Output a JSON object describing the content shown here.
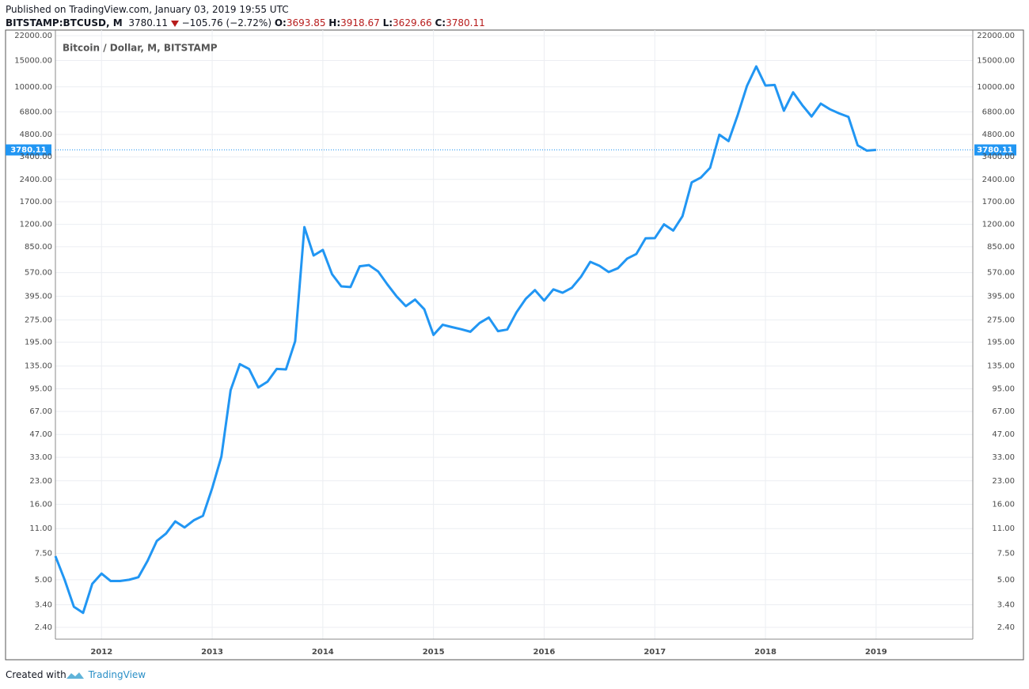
{
  "header": {
    "published": "Published on TradingView.com, January 03, 2019 19:55 UTC",
    "symbol": "BITSTAMP:BTCUSD, M",
    "last": "3780.11",
    "change": "−105.76 (−2.72%)",
    "open_label": "O:",
    "open": "3693.85",
    "high_label": "H:",
    "high": "3918.67",
    "low_label": "L:",
    "low": "3629.66",
    "close_label": "C:",
    "close": "3780.11"
  },
  "chart_data": {
    "type": "line",
    "title": "Bitcoin / Dollar, M, BITSTAMP",
    "color": "#2196f3",
    "log_scale": true,
    "grid": true,
    "categories": [
      null,
      null,
      null,
      null,
      null,
      "2012",
      null,
      null,
      null,
      null,
      null,
      null,
      null,
      null,
      null,
      null,
      null,
      "2013",
      null,
      null,
      null,
      null,
      null,
      null,
      null,
      null,
      null,
      null,
      null,
      "2014",
      null,
      null,
      null,
      null,
      null,
      null,
      null,
      null,
      null,
      null,
      null,
      "2015",
      null,
      null,
      null,
      null,
      null,
      null,
      null,
      null,
      null,
      null,
      null,
      "2016",
      null,
      null,
      null,
      null,
      null,
      null,
      null,
      null,
      null,
      null,
      null,
      "2017",
      null,
      null,
      null,
      null,
      null,
      null,
      null,
      null,
      null,
      null,
      null,
      "2018",
      null,
      null,
      null,
      null,
      null,
      null,
      null,
      null,
      null,
      null,
      null,
      "2019"
    ],
    "values": [
      7.2,
      5.0,
      3.3,
      3.0,
      4.7,
      5.5,
      4.9,
      4.9,
      5.0,
      5.2,
      6.7,
      9.1,
      10.2,
      12.3,
      11.2,
      12.5,
      13.4,
      20.5,
      33.4,
      93,
      139,
      129,
      97,
      106,
      129,
      128,
      198,
      1150,
      742,
      809,
      556,
      461,
      456,
      628,
      640,
      580,
      475,
      395,
      340,
      376,
      324,
      218,
      255,
      246,
      238,
      229,
      262,
      285,
      231,
      237,
      309,
      380,
      435,
      370,
      440,
      418,
      451,
      535,
      673,
      633,
      575,
      610,
      707,
      760,
      967,
      970,
      1200,
      1090,
      1360,
      2290,
      2470,
      2870,
      4780,
      4330,
      6500,
      10160,
      13700,
      10200,
      10300,
      6920,
      9190,
      7530,
      6330,
      7720,
      7070,
      6640,
      6290,
      4060,
      3740,
      3780.11
    ],
    "ylim": [
      2.0,
      24000
    ],
    "yticks": [
      {
        "value": 22000,
        "label": "22000.00"
      },
      {
        "value": 15000,
        "label": "15000.00"
      },
      {
        "value": 10000,
        "label": "10000.00"
      },
      {
        "value": 6800,
        "label": "6800.00"
      },
      {
        "value": 4800,
        "label": "4800.00"
      },
      {
        "value": 3400,
        "label": "3400.00"
      },
      {
        "value": 2400,
        "label": "2400.00"
      },
      {
        "value": 1700,
        "label": "1700.00"
      },
      {
        "value": 1200,
        "label": "1200.00"
      },
      {
        "value": 850,
        "label": "850.00"
      },
      {
        "value": 570,
        "label": "570.00"
      },
      {
        "value": 395,
        "label": "395.00"
      },
      {
        "value": 275,
        "label": "275.00"
      },
      {
        "value": 195,
        "label": "195.00"
      },
      {
        "value": 135,
        "label": "135.00"
      },
      {
        "value": 95,
        "label": "95.00"
      },
      {
        "value": 67,
        "label": "67.00"
      },
      {
        "value": 47,
        "label": "47.00"
      },
      {
        "value": 33,
        "label": "33.00"
      },
      {
        "value": 23,
        "label": "23.00"
      },
      {
        "value": 16,
        "label": "16.00"
      },
      {
        "value": 11,
        "label": "11.00"
      },
      {
        "value": 7.5,
        "label": "7.50"
      },
      {
        "value": 5,
        "label": "5.00"
      },
      {
        "value": 3.4,
        "label": "3.40"
      },
      {
        "value": 2.4,
        "label": "2.40"
      }
    ]
  },
  "footer": {
    "text": "Created with",
    "brand": "TradingView"
  }
}
